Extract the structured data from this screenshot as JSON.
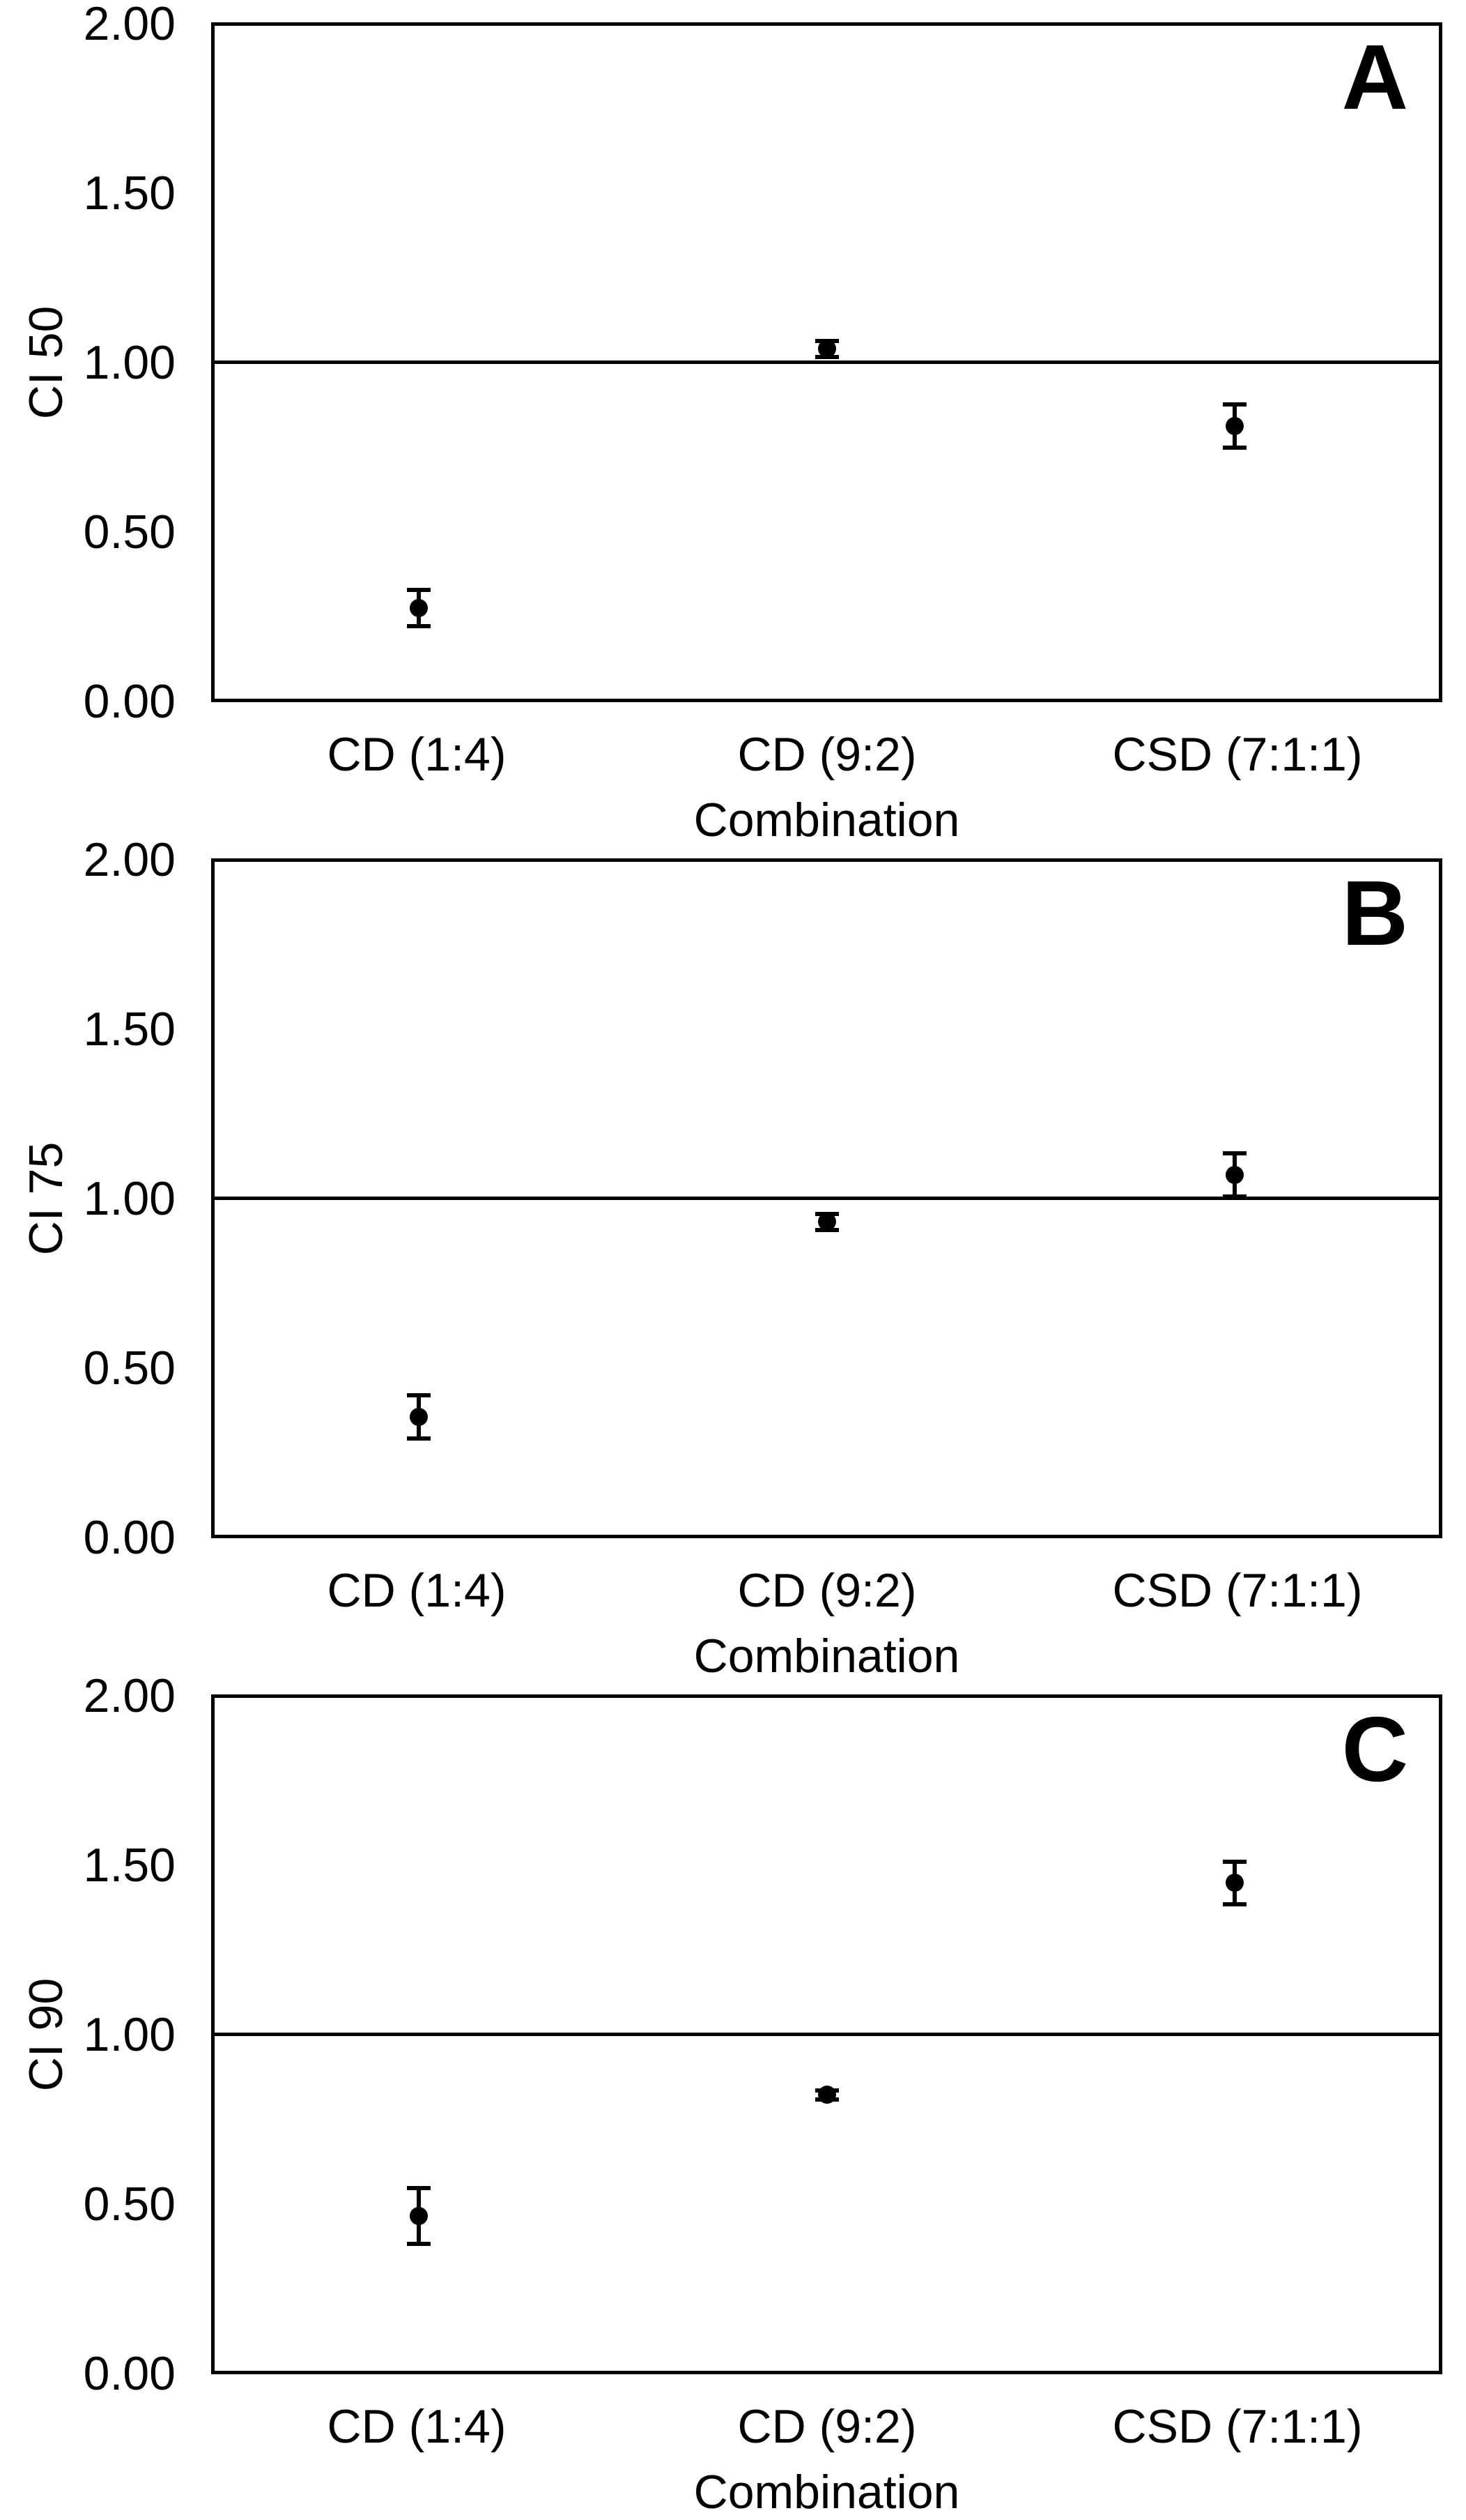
{
  "chart_data": {
    "type": "scatter",
    "subtype": "point-with-error-bars",
    "xlabel": "Combination",
    "categories": [
      "CD (1:4)",
      "CD (9:2)",
      "CSD (7:1:1)"
    ],
    "yticks": [
      "2.00",
      "1.50",
      "1.00",
      "0.50",
      "0.00"
    ],
    "ylim": [
      0,
      2
    ],
    "reference_line": 1.0,
    "grid": "off",
    "marker_color": "#000000",
    "panels": [
      {
        "letter": "A",
        "ylabel": "CI 50",
        "points": [
          {
            "category": "CD (1:4)",
            "value": 0.27,
            "error": 0.06
          },
          {
            "category": "CD (9:2)",
            "value": 1.04,
            "error": 0.03
          },
          {
            "category": "CSD (7:1:1)",
            "value": 0.81,
            "error": 0.07
          }
        ]
      },
      {
        "letter": "B",
        "ylabel": "CI 75",
        "points": [
          {
            "category": "CD (1:4)",
            "value": 0.35,
            "error": 0.07
          },
          {
            "category": "CD (9:2)",
            "value": 0.93,
            "error": 0.03
          },
          {
            "category": "CSD (7:1:1)",
            "value": 1.07,
            "error": 0.07
          }
        ]
      },
      {
        "letter": "C",
        "ylabel": "CI 90",
        "points": [
          {
            "category": "CD (1:4)",
            "value": 0.46,
            "error": 0.09
          },
          {
            "category": "CD (9:2)",
            "value": 0.82,
            "error": 0.02
          },
          {
            "category": "CSD (7:1:1)",
            "value": 1.45,
            "error": 0.07
          }
        ]
      }
    ]
  }
}
